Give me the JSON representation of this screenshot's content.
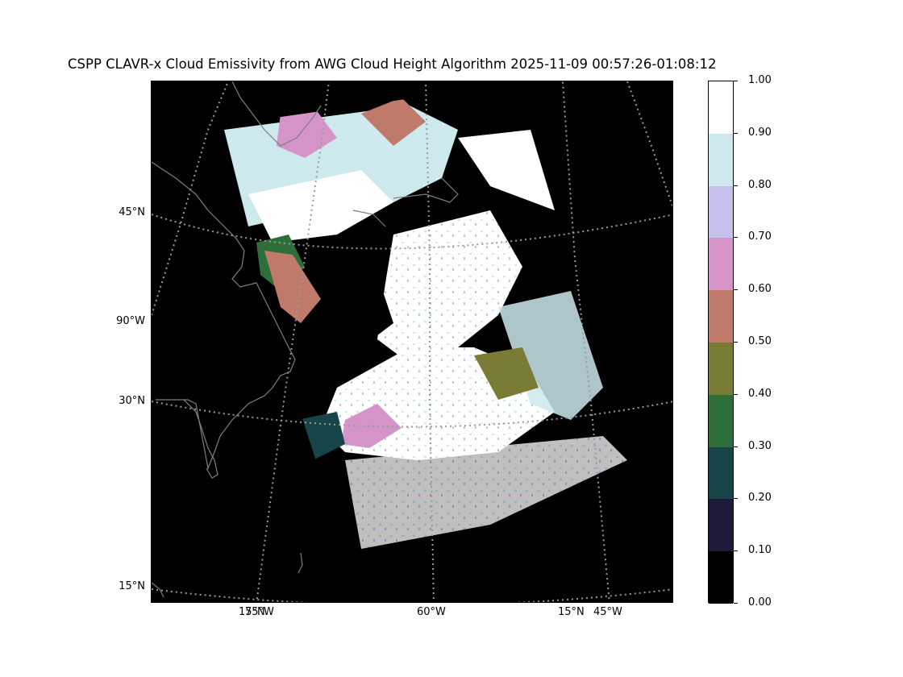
{
  "title": "CSPP CLAVR-x Cloud Emissivity from AWG Cloud Height Algorithm 2025-11-09 00:57:26-01:08:12",
  "lat_labels_left": [
    "45°N",
    "90°W",
    "30°N",
    "15°N"
  ],
  "bottom_labels": [
    "15°N",
    "75°W",
    "60°W",
    "15°N",
    "45°W"
  ],
  "colorbar": {
    "ticks": [
      "1.00",
      "0.90",
      "0.80",
      "0.70",
      "0.60",
      "0.50",
      "0.40",
      "0.30",
      "0.20",
      "0.10",
      "0.00"
    ],
    "colors": [
      "#ffffff",
      "#cde9ed",
      "#c6c0ef",
      "#d494c8",
      "#c07a6c",
      "#7a7b35",
      "#2e6e3a",
      "#17454a",
      "#1f1a3a",
      "#000000"
    ]
  },
  "colors": {
    "background": "#ffffff",
    "land_ocean": "#000000",
    "coastline": "#7f7f7f",
    "graticule": "#9a9a9a"
  }
}
